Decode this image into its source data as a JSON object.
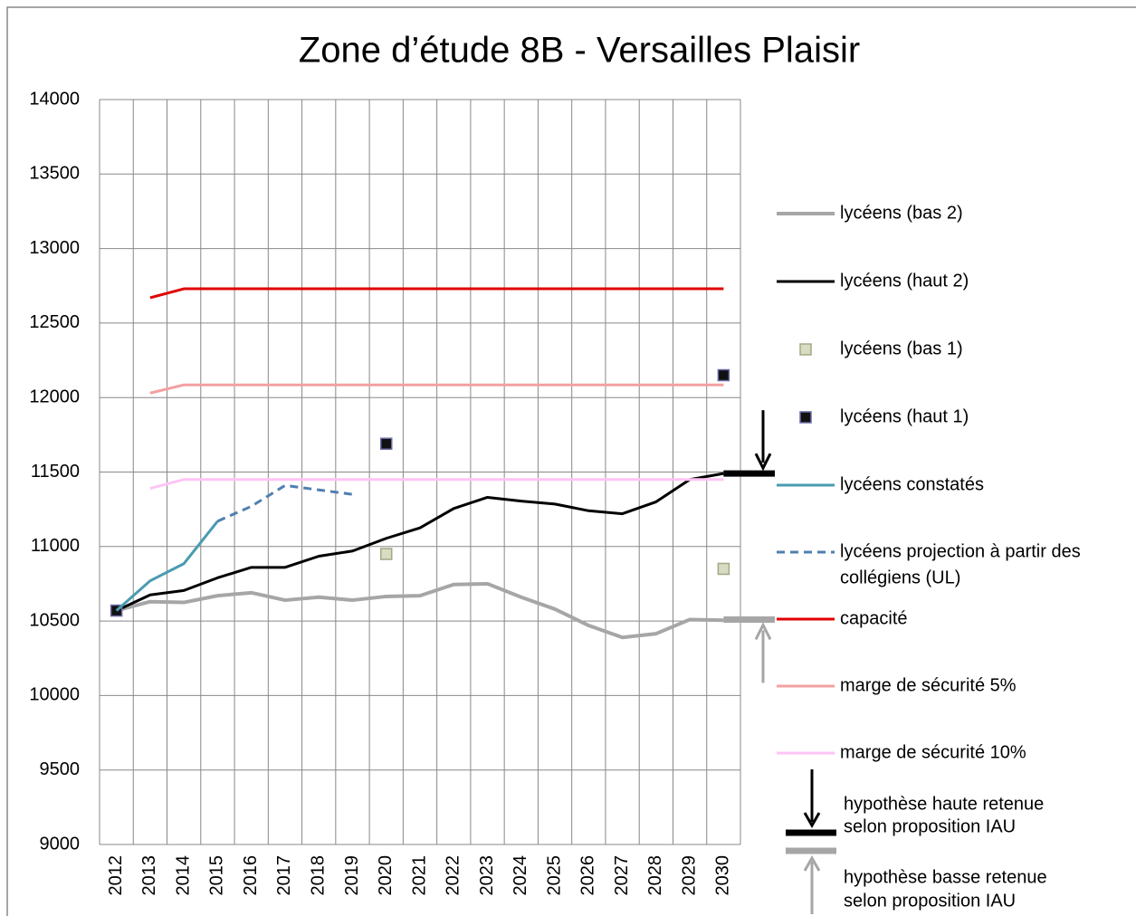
{
  "chart_data": {
    "type": "line",
    "title": "Zone d’étude 8B - Versailles Plaisir",
    "categories": [
      "2012",
      "2013",
      "2014",
      "2015",
      "2016",
      "2017",
      "2018",
      "2019",
      "2020",
      "2021",
      "2022",
      "2023",
      "2024",
      "2025",
      "2026",
      "2027",
      "2028",
      "2029",
      "2030"
    ],
    "ylim": [
      9000,
      14000
    ],
    "yticks": [
      9000,
      9500,
      10000,
      10500,
      11000,
      11500,
      12000,
      12500,
      13000,
      13500,
      14000
    ],
    "grid": true,
    "legend": "right",
    "series": [
      {
        "name": "lycéens (bas 2)",
        "color": "#a6a6a6",
        "width": 4,
        "values": [
          10570,
          10630,
          10625,
          10670,
          10690,
          10640,
          10660,
          10640,
          10665,
          10670,
          10745,
          10750,
          10660,
          10580,
          10470,
          10390,
          10415,
          10510,
          10505
        ]
      },
      {
        "name": "lycéens (haut 2)",
        "color": "#000000",
        "width": 3,
        "values": [
          10570,
          10675,
          10705,
          10790,
          10860,
          10860,
          10935,
          10970,
          11055,
          11125,
          11255,
          11330,
          11305,
          11285,
          11240,
          11220,
          11300,
          11450,
          11490
        ]
      },
      {
        "name": "lycéens (bas 1)",
        "color": "#d7dcc3",
        "marker": "square",
        "values": [
          null,
          null,
          null,
          null,
          null,
          null,
          null,
          null,
          10950,
          null,
          null,
          null,
          null,
          null,
          null,
          null,
          null,
          null,
          10850
        ]
      },
      {
        "name": "lycéens (haut 1)",
        "color": "#111111",
        "marker": "square",
        "values": [
          10570,
          null,
          null,
          null,
          null,
          null,
          null,
          null,
          11690,
          null,
          null,
          null,
          null,
          null,
          null,
          null,
          null,
          null,
          12150
        ]
      },
      {
        "name": "lycéens constatés",
        "color": "#4a9bb0",
        "width": 3,
        "values": [
          10570,
          10770,
          10885,
          11170,
          null,
          null,
          null,
          null,
          null,
          null,
          null,
          null,
          null,
          null,
          null,
          null,
          null,
          null,
          null
        ]
      },
      {
        "name": [
          "lycéens projection à partir des",
          "collégiens (UL)"
        ],
        "color": "#4f7fb0",
        "width": 3,
        "style": "dashed",
        "values": [
          null,
          null,
          null,
          11170,
          11270,
          11410,
          11380,
          11350,
          null,
          null,
          null,
          null,
          null,
          null,
          null,
          null,
          null,
          null,
          null
        ]
      },
      {
        "name": "capacité",
        "color": "#e00000",
        "width": 3,
        "values": [
          null,
          12670,
          12730,
          12730,
          12730,
          12730,
          12730,
          12730,
          12730,
          12730,
          12730,
          12730,
          12730,
          12730,
          12730,
          12730,
          12730,
          12730,
          12730
        ]
      },
      {
        "name": "marge de sécurité 5%",
        "color": "#f4a0a0",
        "width": 3,
        "values": [
          null,
          12030,
          12085,
          12085,
          12085,
          12085,
          12085,
          12085,
          12085,
          12085,
          12085,
          12085,
          12085,
          12085,
          12085,
          12085,
          12085,
          12085,
          12085
        ]
      },
      {
        "name": "marge de sécurité 10%",
        "color": "#ffc4f4",
        "width": 3,
        "values": [
          null,
          11390,
          11450,
          11450,
          11450,
          11450,
          11450,
          11450,
          11450,
          11450,
          11450,
          11450,
          11450,
          11450,
          11450,
          11450,
          11450,
          11450,
          11450
        ]
      }
    ],
    "hypotheses": [
      {
        "label": [
          "hypothèse haute retenue",
          "selon proposition IAU"
        ],
        "color": "#000000",
        "value": 11490
      },
      {
        "label": [
          "hypothèse basse retenue",
          "selon proposition IAU"
        ],
        "color": "#a6a6a6",
        "value": 10510
      }
    ]
  }
}
